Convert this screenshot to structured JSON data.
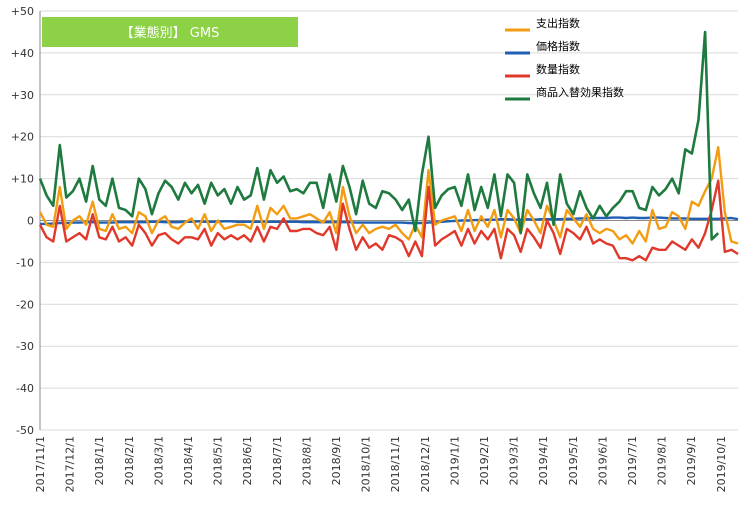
{
  "chart_data": {
    "type": "line",
    "title": "【業態別】 GMS",
    "title_bg": "#8CD146",
    "xlabel": "",
    "ylabel": "",
    "ylim": [
      -50,
      50
    ],
    "yticks": [
      50,
      40,
      30,
      20,
      10,
      0,
      -10,
      -20,
      -30,
      -40,
      -50
    ],
    "ytick_labels": [
      "+50",
      "+40",
      "+30",
      "+20",
      "+10",
      "0",
      "-10",
      "-20",
      "-30",
      "-40",
      "-50"
    ],
    "xtick_labels": [
      "2017/11/1",
      "2017/12/1",
      "2018/1/1",
      "2018/2/1",
      "2018/3/1",
      "2018/4/1",
      "2018/5/1",
      "2018/6/1",
      "2018/7/1",
      "2018/8/1",
      "2018/9/1",
      "2018/10/1",
      "2018/11/1",
      "2018/12/1",
      "2019/1/1",
      "2019/2/1",
      "2019/3/1",
      "2019/4/1",
      "2019/5/1",
      "2019/6/1",
      "2019/7/1",
      "2019/8/1",
      "2019/9/1",
      "2019/10/1"
    ],
    "grid": true,
    "legend_position": "top-right",
    "series": [
      {
        "name": "支出指数",
        "color": "#F39C12",
        "values": [
          2.0,
          -1.0,
          -1.5,
          8.0,
          -2.0,
          0.0,
          1.0,
          -1.0,
          4.5,
          -2.0,
          -2.5,
          1.5,
          -2.0,
          -1.5,
          -3.0,
          2.0,
          1.0,
          -3.0,
          0.0,
          1.0,
          -1.5,
          -2.0,
          -0.5,
          0.5,
          -2.0,
          1.5,
          -2.5,
          0.0,
          -2.0,
          -1.5,
          -1.0,
          -1.0,
          -2.0,
          3.5,
          -2.0,
          3.0,
          1.5,
          3.5,
          0.5,
          0.5,
          1.0,
          1.5,
          0.5,
          -0.5,
          2.0,
          -3.0,
          8.0,
          1.0,
          -3.0,
          -1.0,
          -3.0,
          -2.0,
          -1.5,
          -2.0,
          -1.0,
          -3.0,
          -4.5,
          -1.0,
          -4.0,
          12.0,
          -1.0,
          0.0,
          0.5,
          1.0,
          -2.5,
          2.5,
          -2.5,
          1.0,
          -1.5,
          2.5,
          -4.0,
          2.5,
          0.5,
          -3.0,
          2.5,
          0.0,
          -3.0,
          3.5,
          0.0,
          -4.0,
          2.5,
          0.5,
          -1.5,
          1.5,
          -2.0,
          -3.0,
          -2.0,
          -2.5,
          -4.5,
          -3.5,
          -5.5,
          -2.5,
          -5.0,
          2.5,
          -2.0,
          -1.5,
          2.0,
          1.0,
          -2.0,
          4.5,
          3.5,
          7.0,
          10.0,
          17.5,
          2.0,
          -5.0,
          -5.5
        ]
      },
      {
        "name": "価格指数",
        "color": "#1F5FB4",
        "values": [
          -0.8,
          -0.8,
          -0.7,
          -0.6,
          -0.6,
          -0.5,
          -0.5,
          -0.4,
          -0.4,
          -0.5,
          -0.5,
          -0.5,
          -0.4,
          -0.4,
          -0.4,
          -0.4,
          -0.4,
          -0.3,
          -0.3,
          -0.4,
          -0.4,
          -0.4,
          -0.3,
          -0.3,
          -0.2,
          -0.3,
          -0.3,
          -0.3,
          -0.2,
          -0.2,
          -0.3,
          -0.3,
          -0.3,
          -0.3,
          -0.3,
          -0.3,
          -0.3,
          -0.3,
          -0.3,
          -0.3,
          -0.4,
          -0.4,
          -0.4,
          -0.4,
          -0.4,
          -0.4,
          -0.4,
          -0.4,
          -0.5,
          -0.5,
          -0.5,
          -0.5,
          -0.5,
          -0.5,
          -0.5,
          -0.5,
          -0.6,
          -0.6,
          -0.6,
          -0.5,
          -0.4,
          -0.3,
          -0.2,
          -0.1,
          0.0,
          0.0,
          0.1,
          0.1,
          0.2,
          0.2,
          0.3,
          0.3,
          0.2,
          0.2,
          0.3,
          0.2,
          0.3,
          0.3,
          0.3,
          0.3,
          0.4,
          0.4,
          0.5,
          0.5,
          0.6,
          0.6,
          0.6,
          0.7,
          0.7,
          0.6,
          0.7,
          0.6,
          0.6,
          0.7,
          0.7,
          0.6,
          0.5,
          0.5,
          0.5,
          0.4,
          0.4,
          0.4,
          0.4,
          0.4,
          0.5,
          0.6,
          0.3
        ]
      },
      {
        "name": "数量指数",
        "color": "#E0392B",
        "values": [
          -1.0,
          -4.0,
          -5.0,
          3.5,
          -5.0,
          -4.0,
          -3.0,
          -4.5,
          1.5,
          -4.0,
          -4.5,
          -1.5,
          -5.0,
          -4.0,
          -6.0,
          -1.0,
          -3.0,
          -6.0,
          -3.5,
          -3.0,
          -4.5,
          -5.5,
          -4.0,
          -4.0,
          -4.5,
          -2.0,
          -6.0,
          -3.0,
          -4.5,
          -3.5,
          -4.5,
          -3.5,
          -5.0,
          -1.5,
          -5.0,
          -1.5,
          -2.0,
          0.5,
          -2.5,
          -2.5,
          -2.0,
          -2.0,
          -3.0,
          -3.5,
          -1.5,
          -7.0,
          4.0,
          -2.0,
          -7.0,
          -4.0,
          -6.5,
          -5.5,
          -7.0,
          -3.5,
          -4.0,
          -5.0,
          -8.5,
          -5.0,
          -8.5,
          8.0,
          -6.0,
          -4.5,
          -3.5,
          -2.5,
          -6.0,
          -2.0,
          -5.5,
          -2.5,
          -4.5,
          -2.0,
          -9.0,
          -2.0,
          -3.5,
          -7.5,
          -2.0,
          -4.0,
          -6.5,
          0.0,
          -3.0,
          -8.0,
          -2.0,
          -3.0,
          -4.5,
          -1.5,
          -5.5,
          -4.5,
          -5.5,
          -6.0,
          -9.0,
          -9.0,
          -9.5,
          -8.5,
          -9.5,
          -6.5,
          -7.0,
          -7.0,
          -5.0,
          -6.0,
          -7.0,
          -4.5,
          -6.5,
          -3.0,
          2.5,
          9.5,
          -7.5,
          -7.0,
          -8.0
        ]
      },
      {
        "name": "商品入替効果指数",
        "color": "#1E7A3E",
        "values": [
          10.0,
          6.0,
          3.5,
          18.0,
          5.5,
          7.0,
          10.0,
          4.5,
          13.0,
          5.0,
          3.5,
          10.0,
          3.0,
          2.5,
          1.0,
          10.0,
          7.5,
          1.5,
          6.5,
          9.5,
          8.0,
          5.0,
          9.0,
          6.5,
          8.5,
          4.0,
          9.0,
          6.0,
          7.5,
          4.0,
          8.0,
          5.0,
          6.0,
          12.5,
          5.0,
          12.0,
          9.0,
          10.5,
          7.0,
          7.5,
          6.5,
          9.0,
          9.0,
          3.0,
          11.0,
          4.5,
          13.0,
          8.0,
          1.5,
          9.5,
          4.0,
          3.0,
          7.0,
          6.5,
          5.0,
          2.5,
          5.0,
          -2.5,
          11.0,
          20.0,
          3.0,
          6.0,
          7.5,
          8.0,
          3.5,
          11.0,
          2.5,
          8.0,
          3.0,
          11.0,
          1.0,
          11.0,
          9.0,
          -3.0,
          11.0,
          6.5,
          3.0,
          9.0,
          -1.0,
          11.0,
          4.0,
          1.5,
          7.0,
          3.0,
          0.5,
          3.5,
          1.0,
          3.0,
          4.5,
          7.0,
          7.0,
          3.0,
          2.5,
          8.0,
          6.0,
          7.5,
          10.0,
          6.5,
          17.0,
          16.0,
          24.0,
          45.0,
          -4.5,
          -3.0
        ]
      }
    ]
  }
}
